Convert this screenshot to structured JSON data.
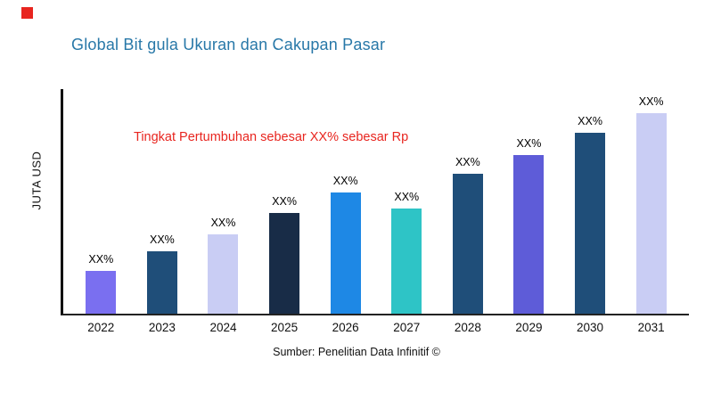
{
  "header": {
    "title": "Global Bit gula Ukuran dan Cakupan Pasar"
  },
  "annotation": {
    "text": "Tingkat Pertumbuhan sebesar XX% sebesar Rp",
    "color": "#e8251f"
  },
  "axis": {
    "y_label": "JUTA USD"
  },
  "source": {
    "text": "Sumber: Penelitian Data Infinitif ©"
  },
  "decor": {
    "accent_square_color": "#e8251f",
    "title_color": "#2878a8"
  },
  "chart_data": {
    "type": "bar",
    "title": "Global Bit gula Ukuran dan Cakupan Pasar",
    "xlabel": "",
    "ylabel": "JUTA USD",
    "categories": [
      "2022",
      "2023",
      "2024",
      "2025",
      "2026",
      "2027",
      "2028",
      "2029",
      "2030",
      "2031"
    ],
    "values": [
      50,
      72,
      92,
      117,
      140,
      122,
      162,
      184,
      209,
      232
    ],
    "bar_labels": [
      "XX%",
      "XX%",
      "XX%",
      "XX%",
      "XX%",
      "XX%",
      "XX%",
      "XX%",
      "XX%",
      "XX%"
    ],
    "bar_colors": [
      "#7a6ff0",
      "#1f4e79",
      "#c9cdf4",
      "#182c47",
      "#1e88e5",
      "#2ec4c6",
      "#1f4e79",
      "#5e5cd8",
      "#1f4e79",
      "#c9cdf4"
    ],
    "ylim": [
      0,
      260
    ],
    "grid": false,
    "legend": "none",
    "annotation": "Tingkat Pertumbuhan sebesar XX% sebesar Rp"
  }
}
